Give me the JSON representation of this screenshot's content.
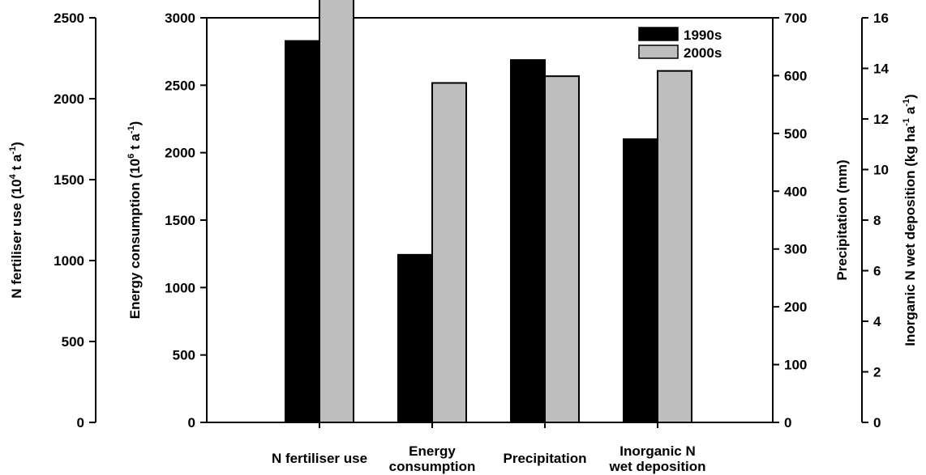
{
  "chart_data": {
    "type": "bar",
    "categories": [
      [
        "N fertiliser use"
      ],
      [
        "Energy",
        "consumption"
      ],
      [
        "Precipitation"
      ],
      [
        "Inorganic N",
        "wet deposition"
      ]
    ],
    "series": [
      {
        "name": "1990s",
        "color": "#000000",
        "values": [
          2357,
          1243,
          627,
          11.2
        ]
      },
      {
        "name": "2000s",
        "color": "#bebebe",
        "values": [
          2667,
          2517,
          599,
          13.9
        ]
      }
    ],
    "axes": [
      {
        "id": "fert",
        "title": [
          "N fertiliser use (10",
          "4",
          " t a",
          "-1",
          ")"
        ],
        "ticks": [
          0,
          500,
          1000,
          1500,
          2000,
          2500
        ],
        "ylim": [
          0,
          2500
        ],
        "side": "left-outer",
        "category_index": 0
      },
      {
        "id": "energy",
        "title": [
          "Energy consumption (10",
          "6",
          " t a",
          "-1",
          ")"
        ],
        "ticks": [
          0,
          500,
          1000,
          1500,
          2000,
          2500,
          3000
        ],
        "ylim": [
          0,
          3000
        ],
        "side": "left-inner",
        "category_index": 1
      },
      {
        "id": "precip",
        "title": [
          "Precipitation (mm)"
        ],
        "ticks": [
          0,
          100,
          200,
          300,
          400,
          500,
          600,
          700
        ],
        "ylim": [
          0,
          700
        ],
        "side": "right-inner",
        "category_index": 2
      },
      {
        "id": "depo",
        "title": [
          "Inorganic N wet deposition (kg ha",
          "-1",
          " a",
          "-1",
          ")"
        ],
        "ticks": [
          0,
          2,
          4,
          6,
          8,
          10,
          12,
          14,
          16
        ],
        "ylim": [
          0,
          16
        ],
        "side": "right-outer",
        "category_index": 3
      }
    ],
    "legend": {
      "position": "top-right"
    }
  }
}
